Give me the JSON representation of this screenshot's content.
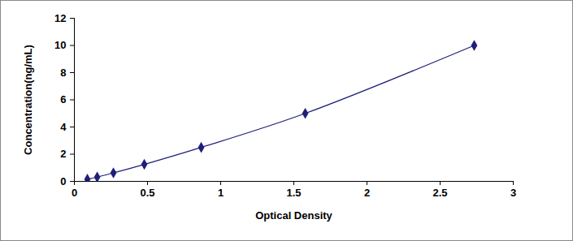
{
  "chart_data": {
    "type": "line",
    "x_label": "Optical Density",
    "y_label": "Concentration(ng/mL)",
    "x": [
      0.089,
      0.156,
      0.267,
      0.478,
      0.867,
      1.578,
      2.733
    ],
    "values": [
      0.156,
      0.312,
      0.625,
      1.25,
      2.5,
      5,
      10
    ],
    "color": "#1f1f7a",
    "marker": "diamond",
    "xlim": [
      0,
      3
    ],
    "xticks": [
      0,
      0.5,
      1,
      1.5,
      2,
      2.5,
      3
    ],
    "ylim": [
      0,
      12
    ],
    "yticks": [
      0,
      2,
      4,
      6,
      8,
      10,
      12
    ],
    "grid": false
  }
}
